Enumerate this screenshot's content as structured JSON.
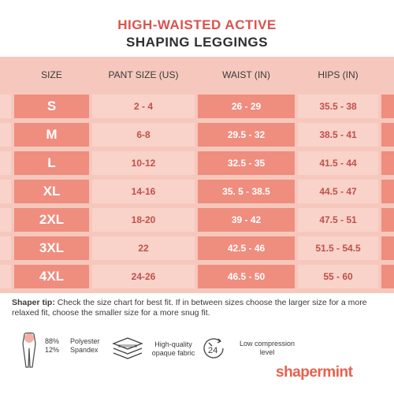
{
  "title": {
    "line1": "HIGH-WAISTED ACTIVE",
    "line2": "SHAPING LEGGINGS"
  },
  "table": {
    "headers": [
      "SIZE",
      "PANT SIZE (US)",
      "WAIST (IN)",
      "HIPS (IN)"
    ],
    "rows": [
      {
        "size": "S",
        "pant": "2 - 4",
        "waist": "26 - 29",
        "hips": "35.5 - 38"
      },
      {
        "size": "M",
        "pant": "6-8",
        "waist": "29.5 - 32",
        "hips": "38.5 - 41"
      },
      {
        "size": "L",
        "pant": "10-12",
        "waist": "32.5 - 35",
        "hips": "41.5 - 44"
      },
      {
        "size": "XL",
        "pant": "14-16",
        "waist": "35. 5 - 38.5",
        "hips": "44.5 - 47"
      },
      {
        "size": "2XL",
        "pant": "18-20",
        "waist": "39 - 42",
        "hips": "47.5 - 51"
      },
      {
        "size": "3XL",
        "pant": "22",
        "waist": "42.5 - 46",
        "hips": "51.5 - 54.5"
      },
      {
        "size": "4XL",
        "pant": "24-26",
        "waist": "46.5 - 50",
        "hips": "55 - 60"
      }
    ]
  },
  "tip": {
    "label": "Shaper tip:",
    "text": " Check the size chart for best fit. If in between sizes choose the larger size for a more relaxed fit, choose the smaller size for a more snug fit."
  },
  "features": {
    "fabric_pct_1": "88%",
    "fabric_pct_2": "12%",
    "fabric_name_1": "Polyester",
    "fabric_name_2": "Spandex",
    "quality_line1": "High-quality",
    "quality_line2": "opaque fabric",
    "clock_number": "24",
    "compression_line1": "Low compression",
    "compression_line2": "level"
  },
  "icons": [
    "leggings-figure-icon",
    "layered-fabric-icon",
    "24-hour-clock-icon"
  ],
  "brand": {
    "name": "shapermint",
    "color": "#e8604c"
  },
  "colors": {
    "title_accent": "#d9534f",
    "table_background": "#f6c8bd",
    "dark_cell": "#ef8d7e",
    "light_cell": "#f9d3c9"
  }
}
